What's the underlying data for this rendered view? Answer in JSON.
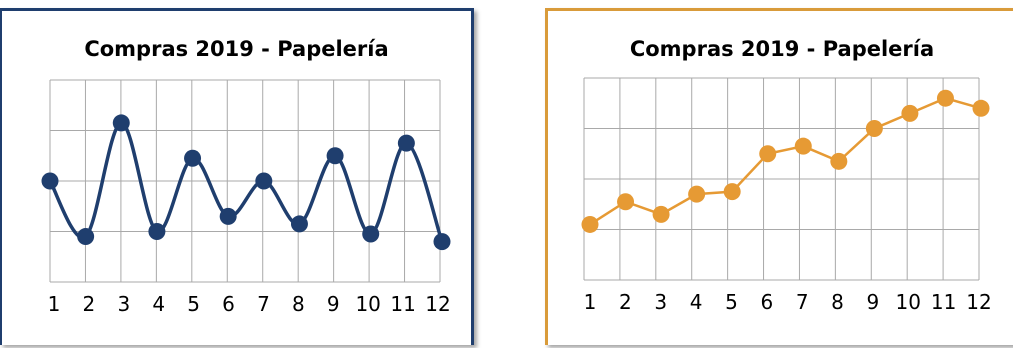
{
  "chart_data": [
    {
      "type": "line",
      "title": "Compras 2019 - Papelería",
      "categories": [
        "1",
        "2",
        "3",
        "4",
        "5",
        "6",
        "7",
        "8",
        "9",
        "10",
        "11",
        "12"
      ],
      "series": [
        {
          "values": [
            2.0,
            0.9,
            3.15,
            1.0,
            2.45,
            1.3,
            2.0,
            1.15,
            2.5,
            0.95,
            2.75,
            0.8
          ],
          "color": "#1f3e6e",
          "smooth": true
        }
      ],
      "ylim": [
        0,
        4
      ],
      "grid": true,
      "accent": "#1f3e6e"
    },
    {
      "type": "line",
      "title": "Compras 2019 - Papelería",
      "categories": [
        "1",
        "2",
        "3",
        "4",
        "5",
        "6",
        "7",
        "8",
        "9",
        "10",
        "11",
        "12"
      ],
      "series": [
        {
          "values": [
            1.1,
            1.55,
            1.3,
            1.7,
            1.75,
            2.5,
            2.65,
            2.35,
            3.0,
            3.3,
            3.6,
            3.4
          ],
          "color": "#e69a34",
          "smooth": false
        }
      ],
      "ylim": [
        0,
        4
      ],
      "grid": true,
      "accent": "#d99b3a"
    }
  ]
}
